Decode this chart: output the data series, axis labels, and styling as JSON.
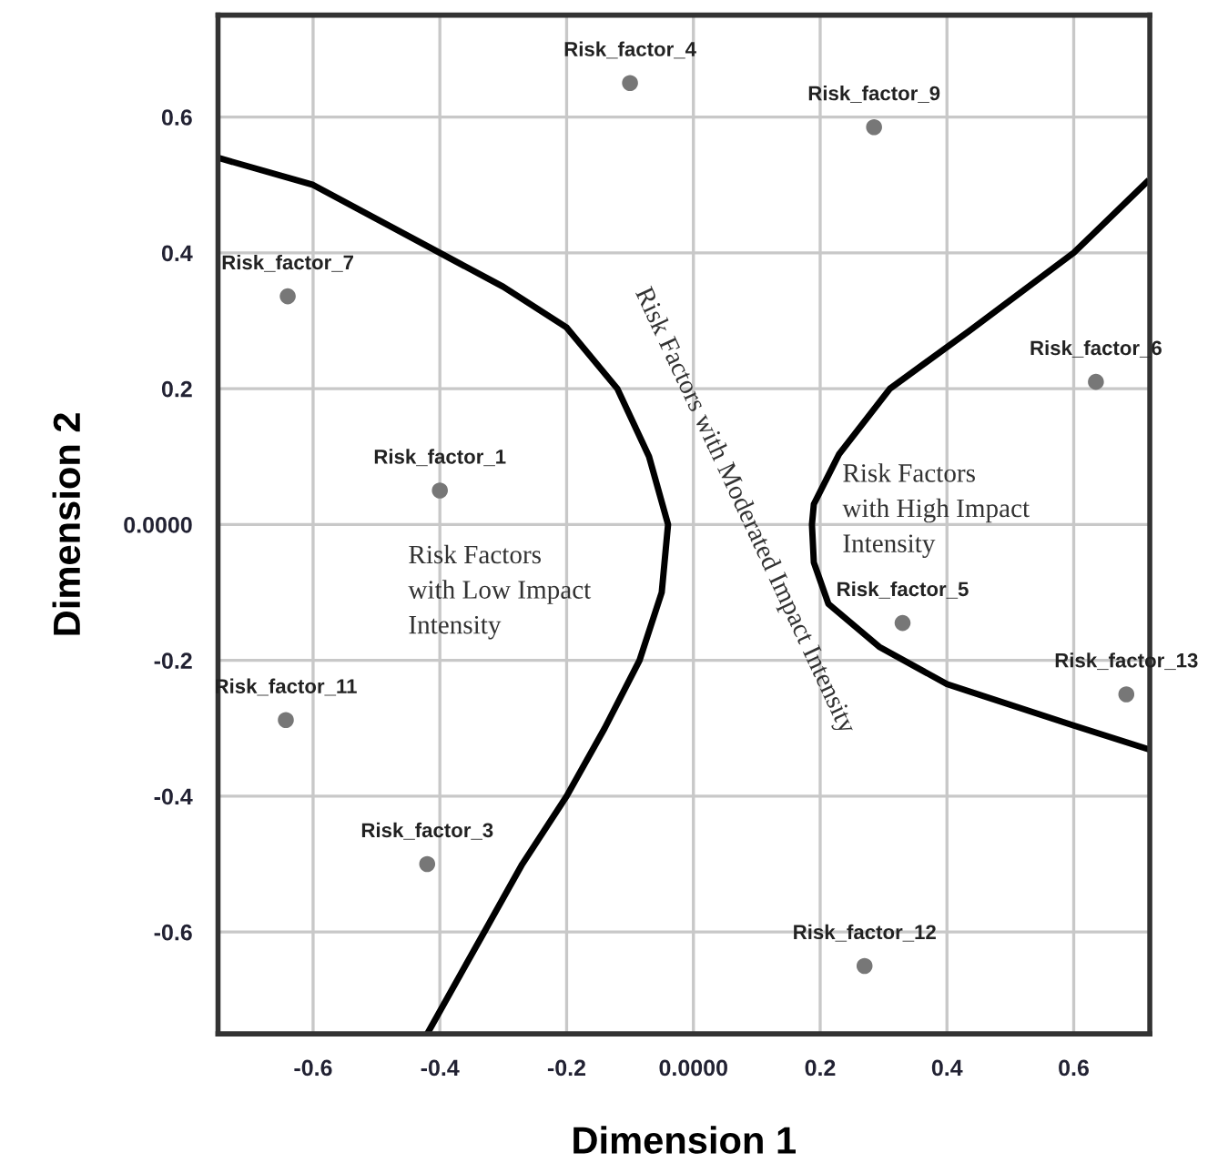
{
  "chart_data": {
    "type": "scatter",
    "xlabel": "Dimension 1",
    "ylabel": "Dimension 2",
    "xlim": [
      -0.75,
      0.72
    ],
    "ylim": [
      -0.75,
      0.75
    ],
    "xticks": [
      -0.6,
      -0.4,
      -0.2,
      {
        "value": 0,
        "label": "0.0000"
      },
      0.2,
      0.4,
      0.6
    ],
    "yticks": [
      -0.6,
      -0.4,
      -0.2,
      {
        "value": 0,
        "label": "0.0000"
      },
      0.2,
      0.4,
      0.6
    ],
    "grid": true,
    "marker": "circle",
    "series": [
      {
        "color": "#777777",
        "x": [
          -0.4,
          -0.42,
          -0.1,
          0.33,
          0.635,
          -0.64,
          0.285,
          -0.643,
          0.27,
          0.683
        ],
        "values": [
          0.05,
          -0.5,
          0.65,
          -0.145,
          0.21,
          0.336,
          0.585,
          -0.288,
          -0.65,
          -0.25
        ]
      },
      {
        "type": "line",
        "color": "#000000",
        "marker": "none",
        "x": [
          -0.75,
          -0.6,
          -0.4,
          -0.3,
          -0.2,
          -0.12,
          -0.07,
          -0.04,
          -0.05,
          -0.085,
          -0.14,
          -0.2,
          -0.27,
          -0.33,
          -0.42
        ],
        "values": [
          0.54,
          0.5,
          0.4,
          0.35,
          0.29,
          0.2,
          0.1,
          0.0,
          -0.1,
          -0.2,
          -0.3,
          -0.4,
          -0.5,
          -0.6,
          -0.75
        ]
      },
      {
        "type": "line",
        "color": "#000000",
        "marker": "none",
        "x": [
          0.715,
          0.6,
          0.435,
          0.31,
          0.23,
          0.19,
          0.187,
          0.19,
          0.213,
          0.293,
          0.4,
          0.6,
          0.715
        ],
        "values": [
          0.504,
          0.4,
          0.285,
          0.2,
          0.104,
          0.03,
          0.0,
          -0.056,
          -0.117,
          -0.18,
          -0.235,
          -0.296,
          -0.33
        ]
      }
    ],
    "annotations": [
      {
        "text": "Risk_factor_1",
        "x": -0.4,
        "y": 0.05
      },
      {
        "text": "Risk_factor_3",
        "x": -0.42,
        "y": -0.5
      },
      {
        "text": "Risk_factor_4",
        "x": -0.1,
        "y": 0.65
      },
      {
        "text": "Risk_factor_5",
        "x": 0.33,
        "y": -0.145
      },
      {
        "text": "Risk_factor_6",
        "x": 0.635,
        "y": 0.21
      },
      {
        "text": "Risk_factor_7",
        "x": -0.64,
        "y": 0.336
      },
      {
        "text": "Risk_factor_9",
        "x": 0.285,
        "y": 0.585
      },
      {
        "text": "Risk_factor_11",
        "x": -0.643,
        "y": -0.288
      },
      {
        "text": "Risk_factor_12",
        "x": 0.27,
        "y": -0.65
      },
      {
        "text": "Risk_factor_13",
        "x": 0.683,
        "y": -0.25
      },
      "Risk Factors\nwith Low Impact\nIntensity",
      "Risk Factors with Moderated Impact Intensity",
      "Risk Factors\nwith High Impact\nIntensity"
    ]
  }
}
